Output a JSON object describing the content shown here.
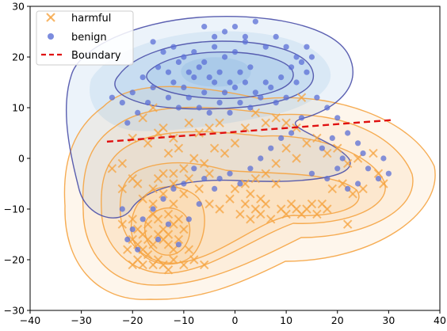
{
  "chart_data": {
    "type": "scatter",
    "xlim": [
      -40,
      40
    ],
    "ylim": [
      -30,
      30
    ],
    "x_ticks": [
      -40,
      -30,
      -20,
      -10,
      0,
      10,
      20,
      30,
      40
    ],
    "y_ticks": [
      -30,
      -20,
      -10,
      0,
      10,
      20,
      30
    ],
    "x_tick_labels": [
      "−40",
      "−30",
      "−20",
      "−10",
      "0",
      "10",
      "20",
      "30",
      "40"
    ],
    "y_tick_labels": [
      "−30",
      "−20",
      "−10",
      "0",
      "10",
      "20",
      "30"
    ],
    "grid": false,
    "legend_position": "top-left",
    "colors": {
      "harmful": "#f5a442",
      "benign": "#5b6fd6",
      "boundary": "#e01010",
      "harmful_contour": "#f5a442",
      "benign_contour": "#4a4fa8",
      "harmful_fill": "#fbc58a",
      "benign_fill": "#7fb1dd"
    },
    "legend": {
      "harmful": "harmful",
      "benign": "benign",
      "boundary": "Boundary"
    },
    "boundary": {
      "x": [
        -25,
        31
      ],
      "y": [
        3.3,
        7.6
      ]
    },
    "series": [
      {
        "name": "harmful",
        "marker": "x",
        "points": [
          [
            -19,
            -5
          ],
          [
            -16,
            -6
          ],
          [
            -15,
            -4
          ],
          [
            -12,
            -3
          ],
          [
            -10,
            -2
          ],
          [
            -8,
            0
          ],
          [
            -6,
            -1
          ],
          [
            -4,
            2
          ],
          [
            -2,
            1
          ],
          [
            0,
            3
          ],
          [
            -14,
            -3
          ],
          [
            -12,
            -5
          ],
          [
            -9,
            -4
          ],
          [
            -7,
            -6
          ],
          [
            -5,
            -3
          ],
          [
            -13,
            1
          ],
          [
            -11,
            2
          ],
          [
            -17,
            3
          ],
          [
            -15,
            5
          ],
          [
            -20,
            -4
          ],
          [
            -22,
            -6
          ],
          [
            -18,
            -8
          ],
          [
            -16,
            -9
          ],
          [
            -14,
            -7
          ],
          [
            -12,
            -9
          ],
          [
            -10,
            -7
          ],
          [
            -13,
            -11
          ],
          [
            -20,
            -12
          ],
          [
            -19,
            -14
          ],
          [
            -18,
            -15
          ],
          [
            -17,
            -13
          ],
          [
            -16,
            -11
          ],
          [
            -15,
            -12
          ],
          [
            -14,
            -14
          ],
          [
            -13,
            -15
          ],
          [
            -12,
            -13
          ],
          [
            -11,
            -12
          ],
          [
            -10,
            -14
          ],
          [
            -20,
            -16
          ],
          [
            -19,
            -17
          ],
          [
            -18,
            -18
          ],
          [
            -17,
            -16
          ],
          [
            -16,
            -17
          ],
          [
            -15,
            -15
          ],
          [
            -14,
            -16
          ],
          [
            -13,
            -17
          ],
          [
            -12,
            -18
          ],
          [
            -20,
            -21
          ],
          [
            -19,
            -20
          ],
          [
            -18,
            -21
          ],
          [
            -17,
            -19
          ],
          [
            -16,
            -21
          ],
          [
            -15,
            -20
          ],
          [
            -14,
            -21
          ],
          [
            -13,
            -22
          ],
          [
            -12,
            -20
          ],
          [
            -10,
            -21
          ],
          [
            -8,
            -20
          ],
          [
            -6,
            -21
          ],
          [
            -22,
            -13
          ],
          [
            -21,
            -18
          ],
          [
            -11,
            -16
          ],
          [
            -9,
            -18
          ],
          [
            -5,
            -9
          ],
          [
            -3,
            -10
          ],
          [
            -1,
            -8
          ],
          [
            1,
            -11
          ],
          [
            2,
            -9
          ],
          [
            3,
            -12
          ],
          [
            4,
            -10
          ],
          [
            5,
            -11
          ],
          [
            6,
            -9
          ],
          [
            7,
            -12
          ],
          [
            0,
            -6
          ],
          [
            2,
            -5
          ],
          [
            4,
            -4
          ],
          [
            6,
            -3
          ],
          [
            8,
            -5
          ],
          [
            3,
            -7
          ],
          [
            5,
            -8
          ],
          [
            9,
            -10
          ],
          [
            10,
            -11
          ],
          [
            11,
            -9
          ],
          [
            12,
            -10
          ],
          [
            13,
            -11
          ],
          [
            14,
            -10
          ],
          [
            15,
            -9
          ],
          [
            16,
            -11
          ],
          [
            17,
            -9
          ],
          [
            18,
            -10
          ],
          [
            8,
            -1
          ],
          [
            10,
            2
          ],
          [
            12,
            0
          ],
          [
            14,
            3
          ],
          [
            16,
            4
          ],
          [
            18,
            1
          ],
          [
            20,
            2
          ],
          [
            22,
            -1
          ],
          [
            24,
            0
          ],
          [
            27,
            1
          ],
          [
            19,
            -6
          ],
          [
            21,
            -5
          ],
          [
            23,
            -7
          ],
          [
            25,
            -6
          ],
          [
            28,
            -3
          ],
          [
            29,
            -5
          ],
          [
            22,
            -13
          ],
          [
            -22,
            -1
          ],
          [
            -24,
            -2
          ],
          [
            -18,
            8
          ],
          [
            -16,
            10
          ],
          [
            -14,
            6
          ],
          [
            -12,
            4
          ],
          [
            -20,
            4
          ],
          [
            -5,
            6
          ],
          [
            -3,
            7
          ],
          [
            2,
            6
          ],
          [
            4,
            9
          ],
          [
            6,
            7
          ],
          [
            8,
            8
          ],
          [
            10,
            7
          ],
          [
            12,
            6
          ],
          [
            -7,
            5
          ],
          [
            -9,
            7
          ],
          [
            13,
            12
          ]
        ]
      },
      {
        "name": "benign",
        "marker": "o",
        "points": [
          [
            -16,
            23
          ],
          [
            -14,
            21
          ],
          [
            -12,
            22
          ],
          [
            -10,
            20
          ],
          [
            -8,
            21
          ],
          [
            -6,
            19
          ],
          [
            -4,
            22
          ],
          [
            -2,
            20
          ],
          [
            0,
            21
          ],
          [
            2,
            23
          ],
          [
            -15,
            18
          ],
          [
            -13,
            17
          ],
          [
            -11,
            19
          ],
          [
            -9,
            17
          ],
          [
            -7,
            18
          ],
          [
            -5,
            16
          ],
          [
            -3,
            17
          ],
          [
            -1,
            15
          ],
          [
            1,
            17
          ],
          [
            3,
            18
          ],
          [
            -12,
            15
          ],
          [
            -10,
            14
          ],
          [
            -8,
            16
          ],
          [
            -6,
            13
          ],
          [
            -4,
            15
          ],
          [
            -2,
            13
          ],
          [
            0,
            14
          ],
          [
            2,
            15
          ],
          [
            4,
            13
          ],
          [
            6,
            15
          ],
          [
            -16,
            14
          ],
          [
            -18,
            16
          ],
          [
            -20,
            13
          ],
          [
            -17,
            11
          ],
          [
            -19,
            9
          ],
          [
            -21,
            7
          ],
          [
            -22,
            11
          ],
          [
            -24,
            12
          ],
          [
            -2,
            25
          ],
          [
            0,
            26
          ],
          [
            2,
            24
          ],
          [
            4,
            27
          ],
          [
            -4,
            24
          ],
          [
            -6,
            26
          ],
          [
            6,
            22
          ],
          [
            8,
            24
          ],
          [
            10,
            22
          ],
          [
            12,
            20
          ],
          [
            -13,
            12
          ],
          [
            -11,
            10
          ],
          [
            -9,
            12
          ],
          [
            -7,
            10
          ],
          [
            -5,
            9
          ],
          [
            -3,
            11
          ],
          [
            -1,
            9
          ],
          [
            1,
            11
          ],
          [
            3,
            10
          ],
          [
            5,
            12
          ],
          [
            7,
            14
          ],
          [
            9,
            16
          ],
          [
            11,
            18
          ],
          [
            13,
            19
          ],
          [
            14,
            17
          ],
          [
            12,
            15
          ],
          [
            10,
            12
          ],
          [
            8,
            11
          ],
          [
            14,
            22
          ],
          [
            15,
            20
          ],
          [
            16,
            12
          ],
          [
            18,
            10
          ],
          [
            20,
            8
          ],
          [
            22,
            5
          ],
          [
            24,
            3
          ],
          [
            25,
            1
          ],
          [
            26,
            -2
          ],
          [
            28,
            -4
          ],
          [
            29,
            0
          ],
          [
            30,
            -3
          ],
          [
            15,
            -3
          ],
          [
            18,
            -4
          ],
          [
            20,
            -2
          ],
          [
            22,
            -6
          ],
          [
            24,
            -5
          ],
          [
            21,
            0
          ],
          [
            17,
            2
          ],
          [
            19,
            4
          ],
          [
            -8,
            -2
          ],
          [
            -6,
            -4
          ],
          [
            -4,
            -6
          ],
          [
            -10,
            -5
          ],
          [
            -12,
            -6
          ],
          [
            -14,
            -8
          ],
          [
            -16,
            -10
          ],
          [
            -18,
            -12
          ],
          [
            -20,
            -14
          ],
          [
            -22,
            -10
          ],
          [
            -21,
            -16
          ],
          [
            -19,
            -18
          ],
          [
            -15,
            -16
          ],
          [
            -13,
            -13
          ],
          [
            -11,
            -17
          ],
          [
            -9,
            -12
          ],
          [
            -7,
            -9
          ],
          [
            -3,
            -4
          ],
          [
            -1,
            -3
          ],
          [
            1,
            -5
          ],
          [
            3,
            -2
          ],
          [
            5,
            0
          ],
          [
            7,
            2
          ],
          [
            9,
            4
          ],
          [
            11,
            5
          ],
          [
            13,
            8
          ]
        ]
      }
    ]
  }
}
